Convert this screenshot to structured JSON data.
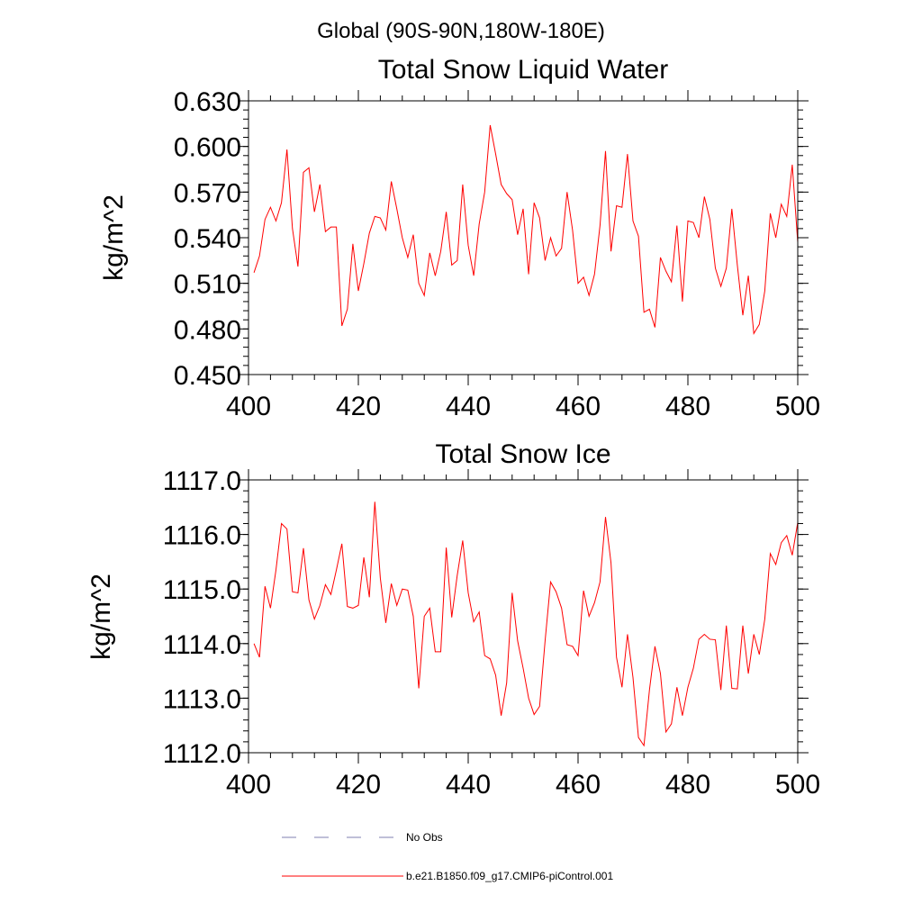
{
  "header": {
    "region_title": "Global (90S-90N,180W-180E)"
  },
  "colors": {
    "model_line": "#ff0000",
    "obs_line": "#7f7fb0",
    "axis": "#000000"
  },
  "legend": {
    "obs_label": "No Obs",
    "model_label": "b.e21.B1850.f09_g17.CMIP6-piControl.001"
  },
  "chart_data": [
    {
      "type": "line",
      "title": "Total Snow Liquid Water",
      "xlabel": "",
      "ylabel": "kg/m^2",
      "xlim": [
        400,
        500
      ],
      "ylim": [
        0.45,
        0.63
      ],
      "xticks": [
        400,
        420,
        440,
        460,
        480,
        500
      ],
      "xtick_labels": [
        "400",
        "420",
        "440",
        "460",
        "480",
        "500"
      ],
      "yticks": [
        0.45,
        0.48,
        0.51,
        0.54,
        0.57,
        0.6,
        0.63
      ],
      "ytick_labels": [
        "0.450",
        "0.480",
        "0.510",
        "0.540",
        "0.570",
        "0.600",
        "0.630"
      ],
      "y_minor_step": 0.006,
      "x_minor_step": 4,
      "grid": false,
      "series": [
        {
          "name": "b.e21.B1850.f09_g17.CMIP6-piControl.001",
          "x": [
            401,
            402,
            403,
            404,
            405,
            406,
            407,
            408,
            409,
            410,
            411,
            412,
            413,
            414,
            415,
            416,
            417,
            418,
            419,
            420,
            421,
            422,
            423,
            424,
            425,
            426,
            427,
            428,
            429,
            430,
            431,
            432,
            433,
            434,
            435,
            436,
            437,
            438,
            439,
            440,
            441,
            442,
            443,
            444,
            445,
            446,
            447,
            448,
            449,
            450,
            451,
            452,
            453,
            454,
            455,
            456,
            457,
            458,
            459,
            460,
            461,
            462,
            463,
            464,
            465,
            466,
            467,
            468,
            469,
            470,
            471,
            472,
            473,
            474,
            475,
            476,
            477,
            478,
            479,
            480,
            481,
            482,
            483,
            484,
            485,
            486,
            487,
            488,
            489,
            490,
            491,
            492,
            493,
            494,
            495,
            496,
            497,
            498,
            499,
            500
          ],
          "values": [
            0.517,
            0.528,
            0.552,
            0.56,
            0.551,
            0.563,
            0.598,
            0.546,
            0.521,
            0.583,
            0.586,
            0.557,
            0.575,
            0.544,
            0.547,
            0.547,
            0.482,
            0.493,
            0.536,
            0.505,
            0.523,
            0.543,
            0.554,
            0.553,
            0.545,
            0.577,
            0.559,
            0.54,
            0.527,
            0.542,
            0.51,
            0.502,
            0.53,
            0.515,
            0.531,
            0.557,
            0.522,
            0.525,
            0.575,
            0.535,
            0.515,
            0.549,
            0.57,
            0.614,
            0.595,
            0.575,
            0.569,
            0.565,
            0.542,
            0.559,
            0.516,
            0.563,
            0.553,
            0.525,
            0.54,
            0.528,
            0.533,
            0.57,
            0.545,
            0.51,
            0.514,
            0.502,
            0.516,
            0.548,
            0.597,
            0.531,
            0.561,
            0.56,
            0.595,
            0.551,
            0.541,
            0.491,
            0.493,
            0.481,
            0.527,
            0.518,
            0.511,
            0.548,
            0.498,
            0.551,
            0.55,
            0.54,
            0.567,
            0.552,
            0.52,
            0.508,
            0.52,
            0.559,
            0.522,
            0.489,
            0.515,
            0.477,
            0.483,
            0.505,
            0.556,
            0.54,
            0.562,
            0.554,
            0.588,
            0.537
          ]
        }
      ]
    },
    {
      "type": "line",
      "title": "Total Snow Ice",
      "xlabel": "",
      "ylabel": "kg/m^2",
      "xlim": [
        400,
        500
      ],
      "ylim": [
        1112.0,
        1117.0
      ],
      "xticks": [
        400,
        420,
        440,
        460,
        480,
        500
      ],
      "xtick_labels": [
        "400",
        "420",
        "440",
        "460",
        "480",
        "500"
      ],
      "yticks": [
        1112.0,
        1113.0,
        1114.0,
        1115.0,
        1116.0,
        1117.0
      ],
      "ytick_labels": [
        "1112.0",
        "1113.0",
        "1114.0",
        "1115.0",
        "1116.0",
        "1117.0"
      ],
      "y_minor_step": 0.2,
      "x_minor_step": 4,
      "grid": false,
      "series": [
        {
          "name": "b.e21.B1850.f09_g17.CMIP6-piControl.001",
          "x": [
            401,
            402,
            403,
            404,
            405,
            406,
            407,
            408,
            409,
            410,
            411,
            412,
            413,
            414,
            415,
            416,
            417,
            418,
            419,
            420,
            421,
            422,
            423,
            424,
            425,
            426,
            427,
            428,
            429,
            430,
            431,
            432,
            433,
            434,
            435,
            436,
            437,
            438,
            439,
            440,
            441,
            442,
            443,
            444,
            445,
            446,
            447,
            448,
            449,
            450,
            451,
            452,
            453,
            454,
            455,
            456,
            457,
            458,
            459,
            460,
            461,
            462,
            463,
            464,
            465,
            466,
            467,
            468,
            469,
            470,
            471,
            472,
            473,
            474,
            475,
            476,
            477,
            478,
            479,
            480,
            481,
            482,
            483,
            484,
            485,
            486,
            487,
            488,
            489,
            490,
            491,
            492,
            493,
            494,
            495,
            496,
            497,
            498,
            499,
            500
          ],
          "values": [
            1114.0,
            1113.75,
            1115.05,
            1114.65,
            1115.35,
            1116.2,
            1116.1,
            1114.95,
            1114.93,
            1115.75,
            1114.8,
            1114.45,
            1114.7,
            1115.08,
            1114.9,
            1115.35,
            1115.83,
            1114.68,
            1114.65,
            1114.7,
            1115.58,
            1114.85,
            1116.6,
            1115.2,
            1114.38,
            1115.1,
            1114.7,
            1115.0,
            1114.98,
            1114.5,
            1113.18,
            1114.5,
            1114.65,
            1113.85,
            1113.85,
            1115.76,
            1114.48,
            1115.25,
            1115.89,
            1114.93,
            1114.4,
            1114.58,
            1113.78,
            1113.72,
            1113.42,
            1112.68,
            1113.28,
            1114.93,
            1114.05,
            1113.55,
            1113.0,
            1112.7,
            1112.85,
            1114.05,
            1115.13,
            1114.95,
            1114.65,
            1113.98,
            1113.95,
            1113.78,
            1114.97,
            1114.5,
            1114.75,
            1115.13,
            1116.32,
            1115.48,
            1113.75,
            1113.2,
            1114.17,
            1113.38,
            1112.28,
            1112.13,
            1113.15,
            1113.95,
            1113.45,
            1112.38,
            1112.53,
            1113.2,
            1112.68,
            1113.2,
            1113.55,
            1114.08,
            1114.17,
            1114.08,
            1114.07,
            1113.15,
            1114.33,
            1113.18,
            1113.17,
            1114.33,
            1113.45,
            1114.17,
            1113.8,
            1114.45,
            1115.65,
            1115.45,
            1115.85,
            1115.98,
            1115.62,
            1116.22
          ]
        }
      ]
    }
  ]
}
